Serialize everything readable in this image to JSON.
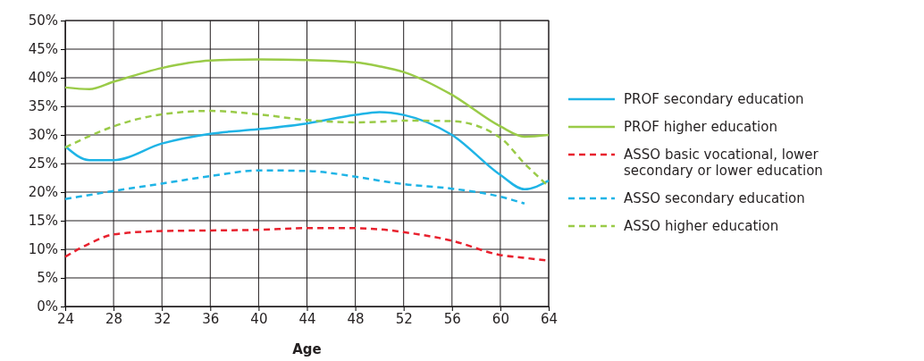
{
  "chart_data": {
    "type": "line",
    "xlabel": "Age",
    "x": [
      24,
      26,
      28,
      32,
      36,
      40,
      44,
      48,
      50,
      52,
      56,
      60,
      62,
      64
    ],
    "xlim": [
      24,
      64
    ],
    "xticks": [
      24,
      28,
      32,
      36,
      40,
      44,
      48,
      52,
      56,
      60,
      64
    ],
    "ylim": [
      0,
      50
    ],
    "yticks": [
      {
        "value": 0,
        "label": "0%"
      },
      {
        "value": 5,
        "label": "5%"
      },
      {
        "value": 10,
        "label": "10%"
      },
      {
        "value": 15,
        "label": "15%"
      },
      {
        "value": 20,
        "label": "20%"
      },
      {
        "value": 25,
        "label": "25%"
      },
      {
        "value": 30,
        "label": "30%"
      },
      {
        "value": 35,
        "label": "35%"
      },
      {
        "value": 40,
        "label": "40%"
      },
      {
        "value": 45,
        "label": "45%"
      },
      {
        "value": 50,
        "label": "50%"
      }
    ],
    "grid": true,
    "legend": "right",
    "marker": "none",
    "series": [
      {
        "name": "PROF secondary education",
        "color": "#1fb4e6",
        "line_style": "solid",
        "values": [
          28,
          25.6,
          25.6,
          28.5,
          30.2,
          31,
          32,
          33.5,
          34,
          33.5,
          30,
          23,
          20.5,
          22
        ]
      },
      {
        "name": "PROF higher education",
        "color": "#9acb48",
        "line_style": "solid",
        "values": [
          38.3,
          38,
          39.3,
          41.7,
          43,
          43.2,
          43.1,
          42.7,
          42,
          41,
          37,
          31.5,
          29.7,
          30
        ]
      },
      {
        "name": "ASSO basic vocational, lower secondary or lower education",
        "color": "#e8212e",
        "line_style": "dashed",
        "values": [
          8.7,
          11,
          12.6,
          13.2,
          13.3,
          13.4,
          13.7,
          13.7,
          13.5,
          13,
          11.5,
          9,
          8.5,
          8
        ]
      },
      {
        "name": "ASSO secondary education",
        "color": "#1fb4e6",
        "line_style": "dashed",
        "values": [
          18.8,
          19.5,
          20.2,
          21.5,
          22.8,
          23.8,
          23.7,
          22.7,
          22,
          21.4,
          20.6,
          19.2,
          18,
          null
        ]
      },
      {
        "name": "ASSO higher education",
        "color": "#9acb48",
        "line_style": "dashed",
        "values": [
          27.8,
          29.8,
          31.5,
          33.6,
          34.2,
          33.6,
          32.6,
          32.2,
          32.3,
          32.5,
          32.4,
          29.5,
          25,
          21
        ]
      }
    ]
  }
}
